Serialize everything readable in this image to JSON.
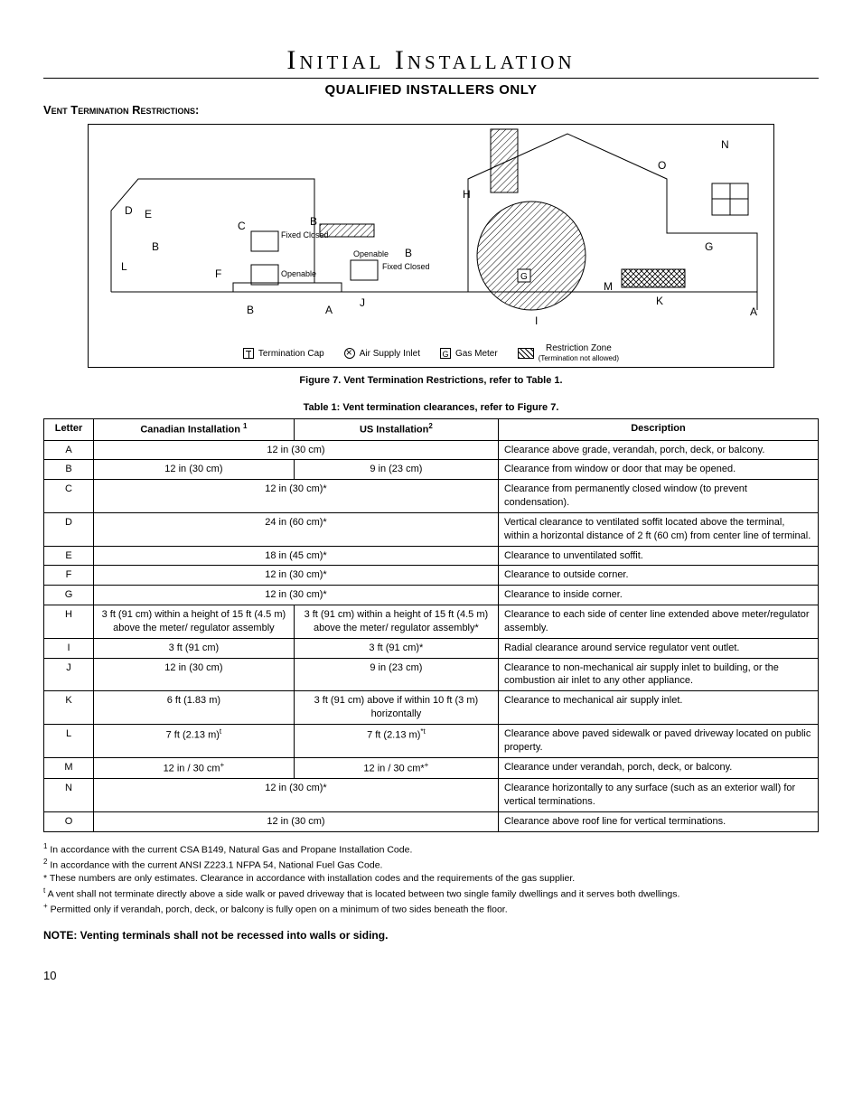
{
  "page": {
    "title": "Initial Installation",
    "subtitle": "QUALIFIED INSTALLERS ONLY",
    "section_heading": "Vent Termination Restrictions:",
    "page_number": "10"
  },
  "figure": {
    "caption": "Figure 7.  Vent Termination Restrictions, refer to Table 1.",
    "legend": {
      "term_cap": "Termination Cap",
      "air_inlet": "Air Supply Inlet",
      "gas_meter": "Gas Meter",
      "gas_meter_symbol": "G",
      "restriction": "Restriction Zone",
      "restriction_sub": "(Termination not allowed)"
    },
    "labels": {
      "fixed_closed": "Fixed Closed",
      "openable": "Openable",
      "letters": [
        "A",
        "B",
        "C",
        "D",
        "E",
        "F",
        "G",
        "H",
        "I",
        "J",
        "K",
        "L",
        "M",
        "N",
        "O"
      ]
    }
  },
  "table": {
    "caption": "Table 1: Vent termination clearances, refer to Figure 7.",
    "headers": {
      "letter": "Letter",
      "canadian": "Canadian Installation",
      "canadian_sup": "1",
      "us": "US Installation",
      "us_sup": "2",
      "description": "Description"
    },
    "rows": [
      {
        "letter": "A",
        "span": true,
        "val": "12 in (30 cm)",
        "desc": "Clearance above grade, verandah, porch, deck, or balcony."
      },
      {
        "letter": "B",
        "can": "12 in  (30 cm)",
        "us": "9 in  (23 cm)",
        "desc": "Clearance from window or door that may be opened."
      },
      {
        "letter": "C",
        "span": true,
        "val": "12 in (30 cm)*",
        "desc": "Clearance from permanently closed window (to prevent condensation)."
      },
      {
        "letter": "D",
        "span": true,
        "val": "24 in (60 cm)*",
        "desc": "Vertical clearance to ventilated soffit located above the terminal, within a horizontal distance of 2 ft (60 cm) from center line of terminal."
      },
      {
        "letter": "E",
        "span": true,
        "val": "18 in (45 cm)*",
        "desc": "Clearance to unventilated soffit."
      },
      {
        "letter": "F",
        "span": true,
        "val": "12 in (30 cm)*",
        "desc": "Clearance to outside corner."
      },
      {
        "letter": "G",
        "span": true,
        "val": "12 in (30 cm)*",
        "desc": "Clearance to inside corner."
      },
      {
        "letter": "H",
        "can": "3 ft (91 cm) within a height of 15 ft (4.5 m) above the meter/ regulator assembly",
        "us": "3 ft (91 cm) within a height of 15 ft (4.5 m) above the meter/ regulator assembly*",
        "desc": "Clearance to each side of center line extended above meter/regulator assembly."
      },
      {
        "letter": "I",
        "can": "3 ft (91 cm)",
        "us": "3 ft (91 cm)*",
        "desc": "Radial clearance around service regulator vent outlet."
      },
      {
        "letter": "J",
        "can": "12 in (30 cm)",
        "us": "9 in (23 cm)",
        "desc": "Clearance to non-mechanical air supply inlet to building, or the combustion air inlet to any other appliance."
      },
      {
        "letter": "K",
        "can": "6 ft (1.83 m)",
        "us": "3 ft (91 cm) above if within 10 ft (3 m) horizontally",
        "desc": "Clearance to mechanical air supply inlet."
      },
      {
        "letter": "L",
        "can_html": "7 ft (2.13 m)<sup>t</sup>",
        "us_html": "7 ft (2.13 m)<sup>*t</sup>",
        "desc": "Clearance above paved sidewalk or paved driveway located on public property."
      },
      {
        "letter": "M",
        "can_html": "12 in / 30 cm<sup>+</sup>",
        "us_html": "12 in / 30 cm*<sup>+</sup>",
        "desc": "Clearance under verandah, porch, deck, or balcony."
      },
      {
        "letter": "N",
        "span": true,
        "val": "12 in (30 cm)*",
        "desc": "Clearance horizontally to any surface (such as an exterior wall) for vertical terminations."
      },
      {
        "letter": "O",
        "span": true,
        "val": "12 in (30 cm)",
        "desc": "Clearance above roof line for vertical terminations."
      }
    ]
  },
  "footnotes": {
    "f1_sup": "1",
    "f1": "In accordance with the current CSA B149, Natural Gas and Propane Installation Code.",
    "f2_sup": "2",
    "f2": "In accordance with the current ANSI Z223.1 NFPA 54, National Fuel Gas Code.",
    "fs_sup": "*",
    "fs": "These numbers are only estimates. Clearance in accordance with installation codes and the requirements of the gas supplier.",
    "ft_sup": "t",
    "ft": "A vent shall not terminate directly above a side walk or paved driveway that is located between two single family dwellings and it serves both dwellings.",
    "fp_sup": "+",
    "fp": "Permitted only if verandah, porch, deck, or balcony is fully open on a minimum of two sides beneath the floor."
  },
  "note": "NOTE: Venting terminals shall not be recessed into walls or siding."
}
